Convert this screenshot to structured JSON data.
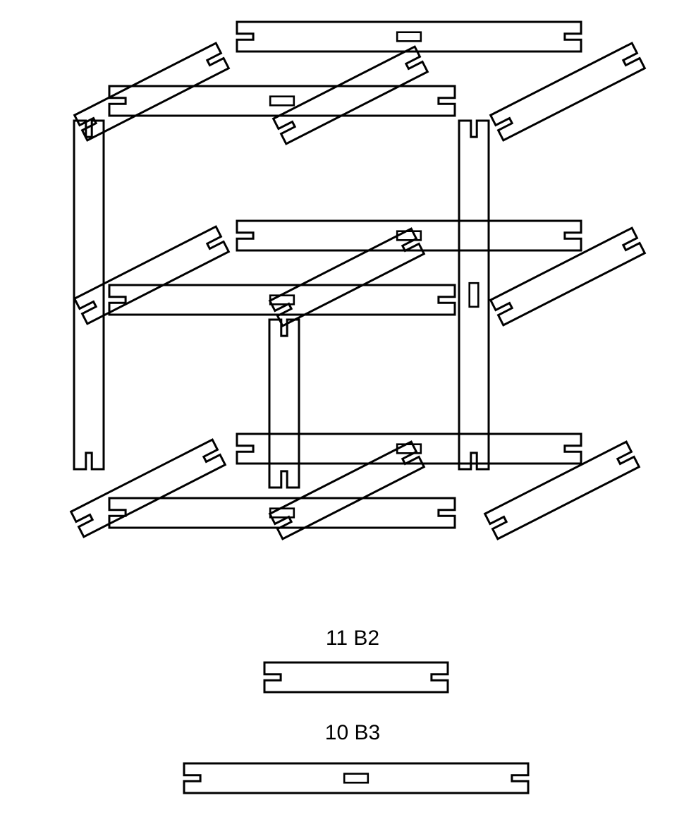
{
  "colors": {
    "stroke": "#000000",
    "background": "#ffffff"
  },
  "legend": [
    {
      "label": "11 B2",
      "piece": "B2",
      "count": 11
    },
    {
      "label": "10 B3",
      "piece": "B3",
      "count": 10
    }
  ]
}
